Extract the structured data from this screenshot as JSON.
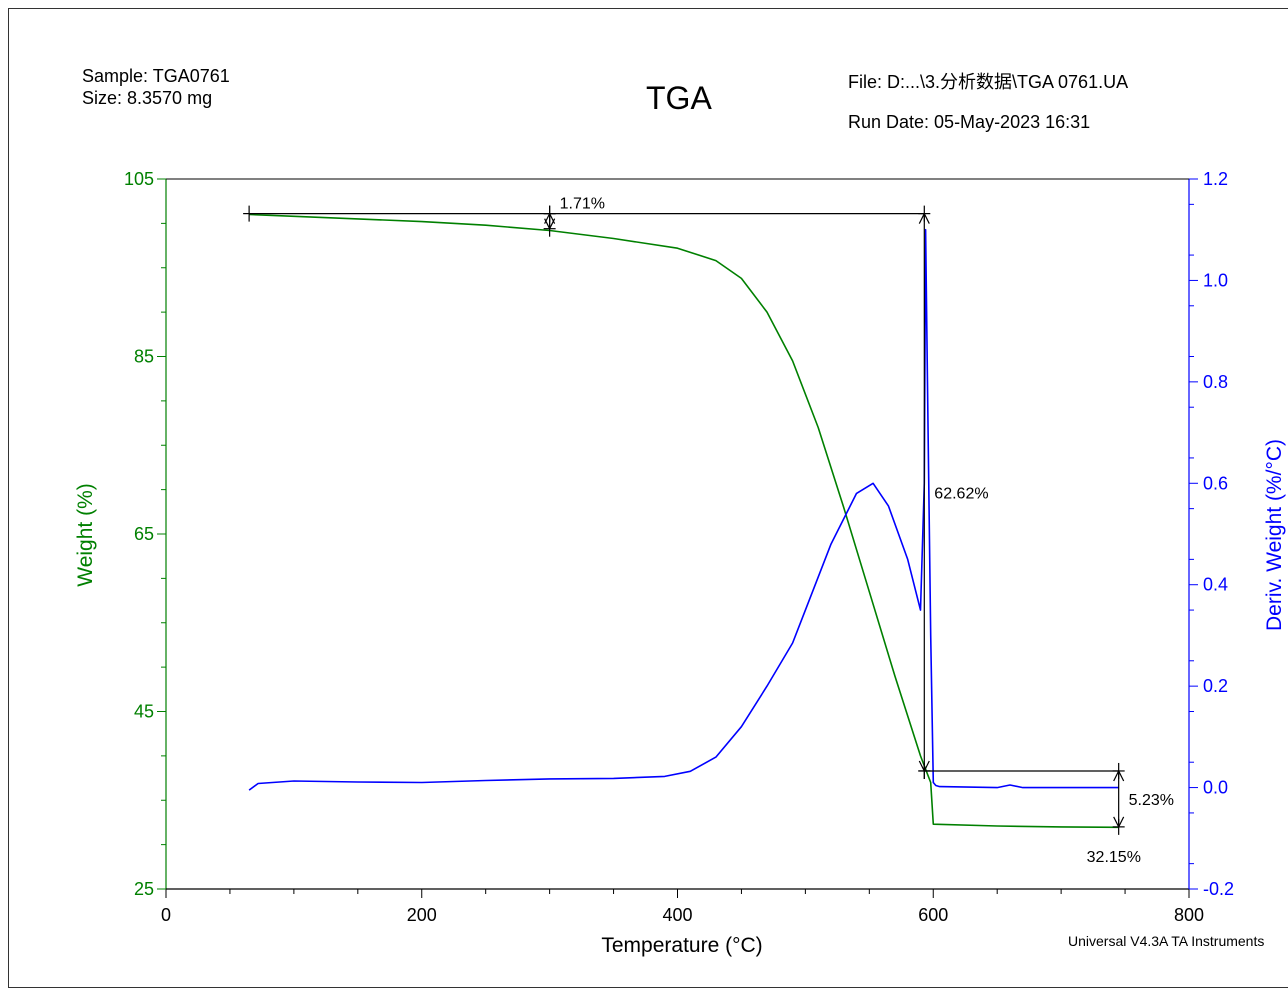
{
  "header": {
    "sample": "Sample: TGA0761",
    "size": "Size: 8.3570 mg",
    "title": "TGA",
    "file": "File: D:...\\3.分析数据\\TGA 0761.UA",
    "run_date": "Run Date: 05-May-2023 16:31",
    "footer": "Universal V4.3A TA Instruments"
  },
  "colors": {
    "weight": "#008000",
    "deriv": "#0000ff",
    "annotation": "#000000"
  },
  "chart_data": {
    "type": "line",
    "title": "TGA",
    "xlabel": "Temperature (°C)",
    "ylabel": "Weight (%)",
    "y2label": "Deriv. Weight (%/°C)",
    "xlim": [
      0,
      800
    ],
    "ylim": [
      25,
      105
    ],
    "y2lim": [
      -0.2,
      1.2
    ],
    "xticks": [
      0,
      200,
      400,
      600,
      800
    ],
    "yticks": [
      25,
      45,
      65,
      85,
      105
    ],
    "y2ticks": [
      -0.2,
      0.0,
      0.2,
      0.4,
      0.6,
      0.8,
      1.0,
      1.2
    ],
    "xtick_labels": [
      "0",
      "200",
      "400",
      "600",
      "800"
    ],
    "ytick_labels": [
      "25",
      "45",
      "65",
      "85",
      "105"
    ],
    "y2tick_labels": [
      "-0.2",
      "0.0",
      "0.2",
      "0.4",
      "0.6",
      "0.8",
      "1.0",
      "1.2"
    ],
    "series": [
      {
        "axis": "left",
        "x": [
          65,
          100,
          150,
          200,
          250,
          300,
          350,
          400,
          430,
          450,
          470,
          490,
          510,
          530,
          550,
          570,
          590,
          598,
          600,
          650,
          700,
          745
        ],
        "y": [
          101.0,
          100.8,
          100.5,
          100.2,
          99.8,
          99.2,
          98.3,
          97.2,
          95.8,
          93.8,
          90.0,
          84.5,
          77.0,
          68.0,
          58.5,
          49.0,
          40.0,
          37.0,
          32.3,
          32.1,
          32.0,
          31.95
        ]
      },
      {
        "axis": "right",
        "x": [
          65,
          72,
          100,
          150,
          200,
          250,
          300,
          350,
          390,
          410,
          430,
          450,
          470,
          490,
          500,
          520,
          540,
          553,
          565,
          580,
          590,
          593,
          594,
          596,
          598,
          600,
          602,
          605,
          650,
          660,
          670,
          745
        ],
        "y": [
          -0.005,
          0.008,
          0.013,
          0.011,
          0.01,
          0.014,
          0.017,
          0.018,
          0.022,
          0.032,
          0.06,
          0.12,
          0.2,
          0.285,
          0.35,
          0.48,
          0.58,
          0.6,
          0.555,
          0.45,
          0.35,
          0.6,
          1.1,
          0.7,
          0.3,
          0.01,
          0.004,
          0.002,
          0.0,
          0.005,
          0.0,
          0.0
        ]
      }
    ],
    "annotations": [
      {
        "label": "1.71%",
        "type": "step",
        "x1": 65,
        "x2": 300,
        "y_ref": 101.1,
        "y_step": 99.4
      },
      {
        "label": "62.62%",
        "type": "step",
        "x1": 300,
        "x2": 593,
        "y_ref": 101.1,
        "y_step": 38.3
      },
      {
        "label": "5.23%",
        "type": "step",
        "x1": 593,
        "x2": 745,
        "y_ref": 38.3,
        "y_step": 32.0
      },
      {
        "label": "32.15%",
        "type": "residue",
        "x": 745,
        "y": 32.0
      }
    ]
  }
}
